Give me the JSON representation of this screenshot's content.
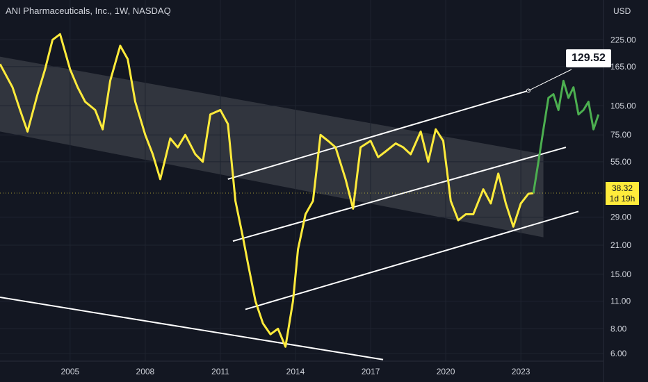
{
  "header": {
    "title": "ANI Pharmaceuticals, Inc., 1W, NASDAQ"
  },
  "price_tag": {
    "price": "38.32",
    "countdown": "1d 19h"
  },
  "annotation": {
    "callout": "129.52"
  },
  "chart_data": {
    "type": "line",
    "title": "ANI Pharmaceuticals, Inc., 1W, NASDAQ",
    "y_scale": "log",
    "y_unit": "USD",
    "ylim": [
      5.5,
      280
    ],
    "xlim": [
      2002.2,
      2026.3
    ],
    "x_ticks": [
      "2005",
      "2008",
      "2011",
      "2014",
      "2017",
      "2020",
      "2023"
    ],
    "y_ticks": [
      "225.00",
      "165.00",
      "105.00",
      "75.00",
      "55.00",
      "38.32",
      "29.00",
      "21.00",
      "15.00",
      "11.00",
      "8.00",
      "6.00"
    ],
    "series": [
      {
        "color": "#ffeb3b",
        "x": [
          2002.2,
          2002.7,
          2003.0,
          2003.3,
          2003.7,
          2004.0,
          2004.3,
          2004.6,
          2005.0,
          2005.3,
          2005.6,
          2006.0,
          2006.3,
          2006.6,
          2007.0,
          2007.3,
          2007.6,
          2008.0,
          2008.3,
          2008.6,
          2009.0,
          2009.3,
          2009.6,
          2010.0,
          2010.3,
          2010.6,
          2011.0,
          2011.3,
          2011.6,
          2011.9,
          2012.1,
          2012.4,
          2012.7,
          2013.0,
          2013.3,
          2013.6,
          2013.9,
          2014.1,
          2014.4,
          2014.7,
          2015.0,
          2015.3,
          2015.6,
          2016.0,
          2016.3,
          2016.6,
          2017.0,
          2017.3,
          2017.6,
          2018.0,
          2018.3,
          2018.6,
          2019.0,
          2019.3,
          2019.6,
          2019.9,
          2020.2,
          2020.5,
          2020.8,
          2021.1,
          2021.5,
          2021.8,
          2022.1,
          2022.4,
          2022.7,
          2023.0,
          2023.3,
          2023.5
        ],
        "y": [
          170,
          130,
          100,
          78,
          120,
          160,
          225,
          240,
          160,
          130,
          110,
          100,
          80,
          140,
          210,
          180,
          110,
          75,
          60,
          45,
          72,
          65,
          75,
          60,
          55,
          95,
          100,
          85,
          35,
          23,
          17,
          11,
          8.5,
          7.5,
          8.0,
          6.5,
          11,
          20,
          30,
          35,
          75,
          70,
          65,
          45,
          32,
          65,
          70,
          58,
          62,
          68,
          65,
          60,
          78,
          55,
          80,
          70,
          35,
          28,
          30,
          30,
          40,
          34,
          48,
          34,
          26,
          34,
          38,
          38.32
        ]
      },
      {
        "color": "#4caf50",
        "x": [
          2023.5,
          2023.7,
          2023.9,
          2024.1,
          2024.3,
          2024.5,
          2024.7,
          2024.9,
          2025.1,
          2025.3,
          2025.5,
          2025.7,
          2025.9,
          2026.1
        ],
        "y": [
          38.32,
          55,
          80,
          115,
          120,
          100,
          140,
          115,
          130,
          95,
          100,
          110,
          80,
          95
        ]
      }
    ],
    "channel": {
      "start": [
        2002.2,
        185,
        78
      ],
      "end": [
        2023.9,
        60,
        23
      ]
    },
    "trendlines": [
      {
        "start": [
          2011.3,
          45
        ],
        "end": [
          2023.3,
          125
        ]
      },
      {
        "start": [
          2011.5,
          22
        ],
        "end": [
          2024.8,
          65
        ]
      },
      {
        "start": [
          2012.0,
          10
        ],
        "end": [
          2025.3,
          31
        ]
      },
      {
        "start": [
          2002.2,
          11.5
        ],
        "end": [
          2017.5,
          5.6
        ]
      }
    ]
  }
}
